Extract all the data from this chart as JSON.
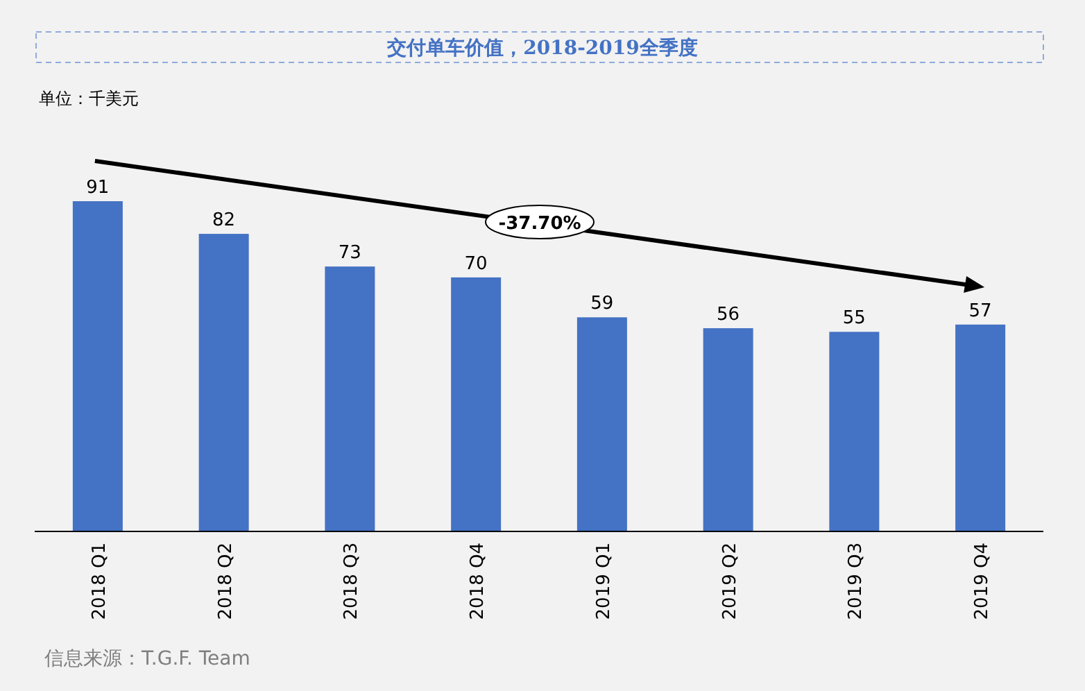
{
  "chart_data": {
    "type": "bar",
    "title": "交付单车价值，2018-2019全季度",
    "categories": [
      "2018 Q1",
      "2018 Q2",
      "2018 Q3",
      "2018 Q4",
      "2019 Q1",
      "2019 Q2",
      "2019 Q3",
      "2019 Q4"
    ],
    "values": [
      91,
      82,
      73,
      70,
      59,
      56,
      55,
      57
    ],
    "color": "#4472c4",
    "data_labels": true,
    "annotations": [
      "单位：千美元",
      "-37.70%",
      "信息来源：T.G.F. Team"
    ]
  }
}
